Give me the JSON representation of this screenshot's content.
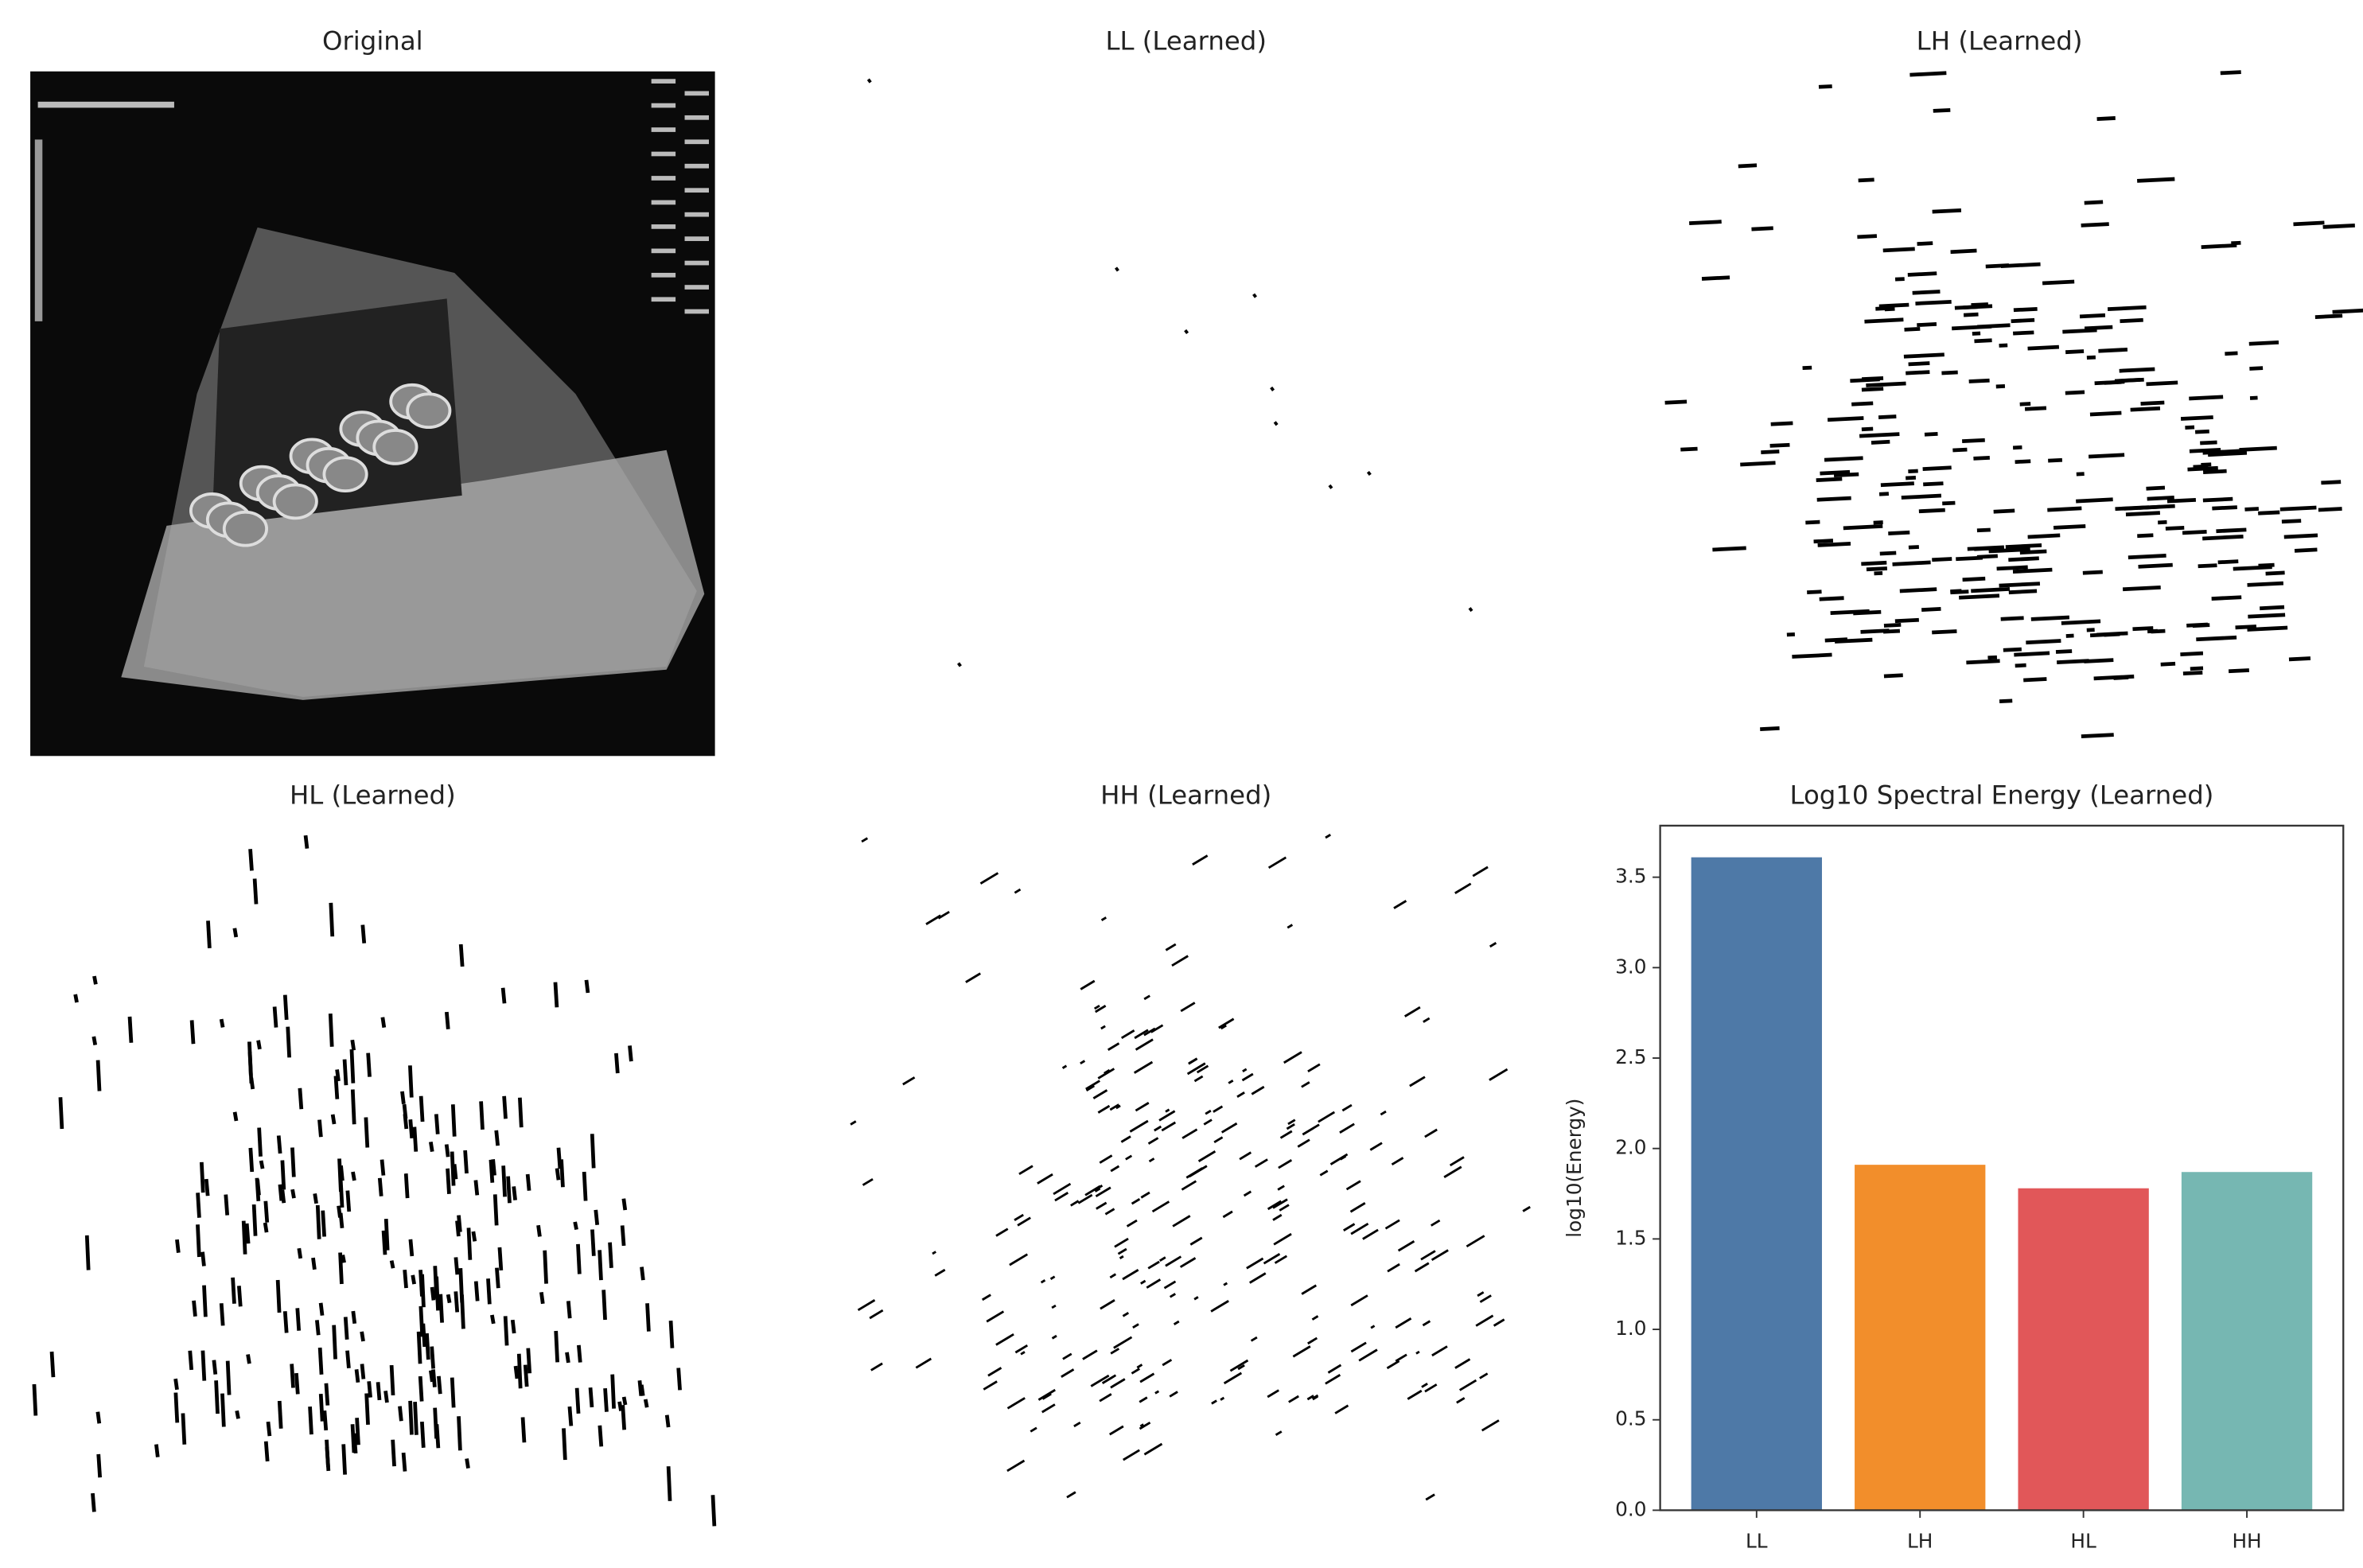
{
  "panels": [
    {
      "title": "Original"
    },
    {
      "title": "LL (Learned)"
    },
    {
      "title": "LH (Learned)"
    },
    {
      "title": "HL (Learned)"
    },
    {
      "title": "HH (Learned)"
    }
  ],
  "chart_data": {
    "type": "bar",
    "title": "Log10 Spectral Energy (Learned)",
    "y_label": "log10(Energy)",
    "categories": [
      "LL",
      "LH",
      "HL",
      "HH"
    ],
    "values": [
      3.61,
      1.91,
      1.78,
      1.87
    ],
    "colors": [
      "#4e79a7",
      "#f28e2b",
      "#e15759",
      "#76b7b2"
    ],
    "ylim": [
      0,
      3.785
    ],
    "yticks": [
      {
        "value": 0,
        "label": "0.0"
      },
      {
        "value": 0.5,
        "label": "0.5"
      },
      {
        "value": 1,
        "label": "1.0"
      },
      {
        "value": 1.5,
        "label": "1.5"
      },
      {
        "value": 2,
        "label": "2.0"
      },
      {
        "value": 2.5,
        "label": "2.5"
      },
      {
        "value": 3,
        "label": "3.0"
      },
      {
        "value": 3.5,
        "label": "3.5"
      }
    ]
  }
}
